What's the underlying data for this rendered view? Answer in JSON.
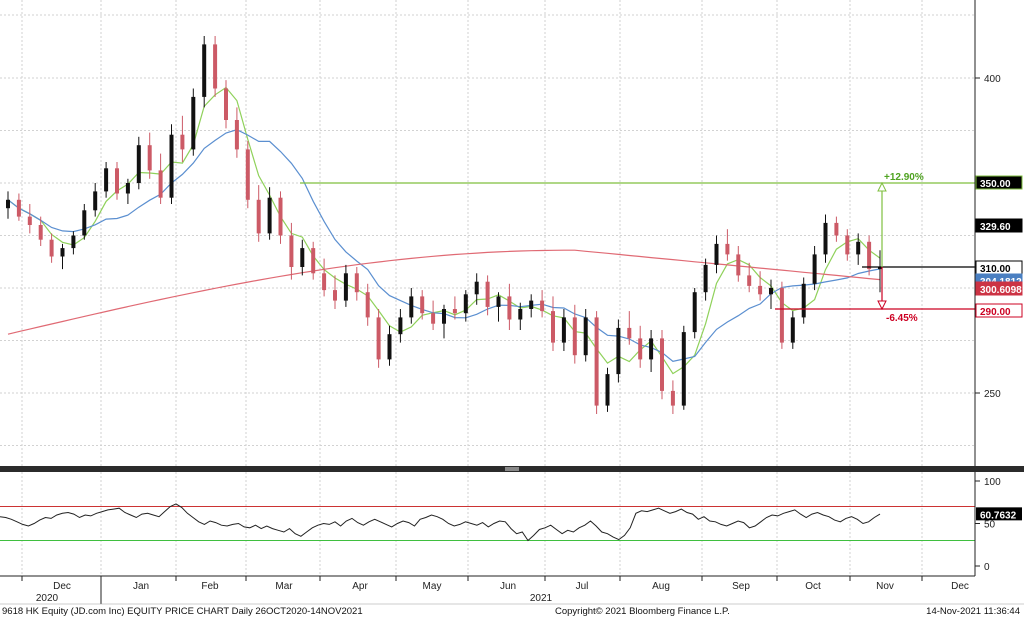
{
  "footer": {
    "left": "9618 HK Equity (JD.com Inc) EQUITY PRICE CHART  Daily 26OCT2020-14NOV2021",
    "center": "Copyright© 2021 Bloomberg Finance L.P.",
    "right": "14-Nov-2021 11:36:44"
  },
  "chart_data": [
    {
      "type": "candlestick",
      "title": "",
      "x_tick_labels": [
        "Dec",
        "Jan",
        "Feb",
        "Mar",
        "Apr",
        "May",
        "Jun",
        "Jul",
        "Aug",
        "Sep",
        "Oct",
        "Nov",
        "Dec"
      ],
      "year_labels": [
        "2020",
        "2021"
      ],
      "y_tick_labels": [
        "400",
        "250"
      ],
      "ylim": [
        220,
        430
      ],
      "grid": true,
      "price_tags": [
        {
          "text": "350.00",
          "fill": "#ffffff",
          "bg": "#000000",
          "border": "#7fbf3f"
        },
        {
          "text": "329.60",
          "fill": "#ffffff",
          "bg": "#000000",
          "border": "#000000"
        },
        {
          "text": "310.00",
          "fill": "#000000",
          "bg": "#ffffff",
          "border": "#000000"
        },
        {
          "text": "304.1812",
          "fill": "#ffffff",
          "bg": "#4a7fc1",
          "border": "#4a7fc1"
        },
        {
          "text": "300.6098",
          "fill": "#ffffff",
          "bg": "#cc3344",
          "border": "#cc3344"
        },
        {
          "text": "290.00",
          "fill": "#cc0022",
          "bg": "#ffffff",
          "border": "#cc0022"
        }
      ],
      "annotations": [
        "+12.90%",
        "-6.45%"
      ],
      "horizontal_lines": [
        350,
        310,
        290
      ],
      "candles_approx": [
        {
          "o": 338,
          "h": 346,
          "l": 333,
          "c": 342
        },
        {
          "o": 342,
          "h": 345,
          "l": 332,
          "c": 334
        },
        {
          "o": 334,
          "h": 340,
          "l": 326,
          "c": 330
        },
        {
          "o": 330,
          "h": 334,
          "l": 320,
          "c": 323
        },
        {
          "o": 323,
          "h": 326,
          "l": 312,
          "c": 315
        },
        {
          "o": 315,
          "h": 321,
          "l": 309,
          "c": 319
        },
        {
          "o": 319,
          "h": 327,
          "l": 316,
          "c": 325
        },
        {
          "o": 325,
          "h": 340,
          "l": 323,
          "c": 337
        },
        {
          "o": 337,
          "h": 350,
          "l": 334,
          "c": 346
        },
        {
          "o": 346,
          "h": 360,
          "l": 343,
          "c": 357
        },
        {
          "o": 357,
          "h": 360,
          "l": 342,
          "c": 345
        },
        {
          "o": 345,
          "h": 352,
          "l": 340,
          "c": 350
        },
        {
          "o": 350,
          "h": 372,
          "l": 347,
          "c": 368
        },
        {
          "o": 368,
          "h": 374,
          "l": 352,
          "c": 356
        },
        {
          "o": 356,
          "h": 364,
          "l": 340,
          "c": 343
        },
        {
          "o": 343,
          "h": 378,
          "l": 340,
          "c": 373
        },
        {
          "o": 373,
          "h": 382,
          "l": 360,
          "c": 366
        },
        {
          "o": 366,
          "h": 395,
          "l": 363,
          "c": 391
        },
        {
          "o": 391,
          "h": 420,
          "l": 386,
          "c": 416
        },
        {
          "o": 416,
          "h": 420,
          "l": 391,
          "c": 395
        },
        {
          "o": 395,
          "h": 399,
          "l": 376,
          "c": 380
        },
        {
          "o": 380,
          "h": 386,
          "l": 362,
          "c": 366
        },
        {
          "o": 366,
          "h": 370,
          "l": 338,
          "c": 342
        },
        {
          "o": 342,
          "h": 349,
          "l": 322,
          "c": 326
        },
        {
          "o": 326,
          "h": 348,
          "l": 323,
          "c": 343
        },
        {
          "o": 343,
          "h": 346,
          "l": 321,
          "c": 325
        },
        {
          "o": 325,
          "h": 331,
          "l": 304,
          "c": 310
        },
        {
          "o": 310,
          "h": 323,
          "l": 306,
          "c": 319
        },
        {
          "o": 319,
          "h": 322,
          "l": 304,
          "c": 307
        },
        {
          "o": 307,
          "h": 314,
          "l": 296,
          "c": 299
        },
        {
          "o": 299,
          "h": 306,
          "l": 290,
          "c": 294
        },
        {
          "o": 294,
          "h": 311,
          "l": 291,
          "c": 307
        },
        {
          "o": 307,
          "h": 310,
          "l": 294,
          "c": 298
        },
        {
          "o": 298,
          "h": 302,
          "l": 282,
          "c": 286
        },
        {
          "o": 286,
          "h": 290,
          "l": 262,
          "c": 266
        },
        {
          "o": 266,
          "h": 282,
          "l": 263,
          "c": 278
        },
        {
          "o": 278,
          "h": 290,
          "l": 274,
          "c": 286
        },
        {
          "o": 286,
          "h": 300,
          "l": 283,
          "c": 296
        },
        {
          "o": 296,
          "h": 299,
          "l": 285,
          "c": 288
        },
        {
          "o": 288,
          "h": 294,
          "l": 280,
          "c": 283
        },
        {
          "o": 283,
          "h": 292,
          "l": 276,
          "c": 290
        },
        {
          "o": 290,
          "h": 296,
          "l": 285,
          "c": 288
        },
        {
          "o": 288,
          "h": 299,
          "l": 284,
          "c": 297
        },
        {
          "o": 297,
          "h": 307,
          "l": 292,
          "c": 303
        },
        {
          "o": 303,
          "h": 306,
          "l": 287,
          "c": 291
        },
        {
          "o": 291,
          "h": 298,
          "l": 284,
          "c": 296
        },
        {
          "o": 296,
          "h": 302,
          "l": 280,
          "c": 285
        },
        {
          "o": 285,
          "h": 293,
          "l": 280,
          "c": 290
        },
        {
          "o": 290,
          "h": 297,
          "l": 286,
          "c": 294
        },
        {
          "o": 294,
          "h": 299,
          "l": 286,
          "c": 289
        },
        {
          "o": 289,
          "h": 296,
          "l": 270,
          "c": 274
        },
        {
          "o": 274,
          "h": 290,
          "l": 270,
          "c": 286
        },
        {
          "o": 286,
          "h": 292,
          "l": 264,
          "c": 268
        },
        {
          "o": 268,
          "h": 290,
          "l": 265,
          "c": 286
        },
        {
          "o": 286,
          "h": 289,
          "l": 240,
          "c": 244
        },
        {
          "o": 244,
          "h": 262,
          "l": 241,
          "c": 259
        },
        {
          "o": 259,
          "h": 285,
          "l": 255,
          "c": 281
        },
        {
          "o": 281,
          "h": 289,
          "l": 273,
          "c": 276
        },
        {
          "o": 276,
          "h": 282,
          "l": 262,
          "c": 266
        },
        {
          "o": 266,
          "h": 280,
          "l": 260,
          "c": 276
        },
        {
          "o": 276,
          "h": 280,
          "l": 247,
          "c": 251
        },
        {
          "o": 251,
          "h": 256,
          "l": 240,
          "c": 244
        },
        {
          "o": 244,
          "h": 282,
          "l": 242,
          "c": 279
        },
        {
          "o": 279,
          "h": 300,
          "l": 276,
          "c": 298
        },
        {
          "o": 298,
          "h": 314,
          "l": 294,
          "c": 311
        },
        {
          "o": 311,
          "h": 325,
          "l": 307,
          "c": 321
        },
        {
          "o": 321,
          "h": 328,
          "l": 313,
          "c": 316
        },
        {
          "o": 316,
          "h": 320,
          "l": 303,
          "c": 306
        },
        {
          "o": 306,
          "h": 312,
          "l": 298,
          "c": 301
        },
        {
          "o": 301,
          "h": 308,
          "l": 294,
          "c": 297
        },
        {
          "o": 297,
          "h": 304,
          "l": 290,
          "c": 300
        },
        {
          "o": 300,
          "h": 303,
          "l": 271,
          "c": 274
        },
        {
          "o": 274,
          "h": 289,
          "l": 271,
          "c": 286
        },
        {
          "o": 286,
          "h": 305,
          "l": 283,
          "c": 302
        },
        {
          "o": 302,
          "h": 320,
          "l": 299,
          "c": 316
        },
        {
          "o": 316,
          "h": 335,
          "l": 312,
          "c": 331
        },
        {
          "o": 331,
          "h": 334,
          "l": 322,
          "c": 325
        },
        {
          "o": 325,
          "h": 328,
          "l": 313,
          "c": 316
        },
        {
          "o": 316,
          "h": 326,
          "l": 311,
          "c": 322
        },
        {
          "o": 322,
          "h": 325,
          "l": 306,
          "c": 309
        },
        {
          "o": 309,
          "h": 318,
          "l": 298,
          "c": 310
        }
      ],
      "moving_averages": [
        "short",
        "medium",
        "long"
      ],
      "bands": []
    },
    {
      "type": "line",
      "title": "",
      "y_tick_labels": [
        "100",
        "50",
        "0"
      ],
      "ylim": [
        0,
        100
      ],
      "reference_lines": [
        70,
        30
      ],
      "last_value_label": "60.7632",
      "series": [
        {
          "name": "",
          "values": [
            58,
            57,
            55,
            52,
            49,
            47,
            50,
            54,
            57,
            56,
            60,
            62,
            63,
            61,
            57,
            60,
            59,
            62,
            64,
            66,
            67,
            68,
            63,
            60,
            57,
            61,
            62,
            60,
            58,
            64,
            70,
            73,
            69,
            62,
            57,
            52,
            49,
            53,
            51,
            48,
            47,
            49,
            50,
            46,
            45,
            48,
            44,
            47,
            44,
            42,
            40,
            44,
            38,
            35,
            40,
            45,
            48,
            50,
            49,
            52,
            47,
            53,
            56,
            51,
            48,
            52,
            55,
            52,
            49,
            46,
            50,
            53,
            51,
            47,
            55,
            57,
            60,
            58,
            55,
            50,
            47,
            49,
            52,
            50,
            48,
            51,
            46,
            50,
            53,
            52,
            44,
            38,
            40,
            30,
            36,
            43,
            45,
            48,
            43,
            38,
            42,
            40,
            45,
            48,
            53,
            47,
            40,
            38,
            34,
            31,
            36,
            45,
            62,
            65,
            64,
            66,
            68,
            65,
            62,
            64,
            67,
            63,
            61,
            55,
            58,
            53,
            52,
            49,
            47,
            50,
            53,
            51,
            45,
            47,
            52,
            57,
            60,
            59,
            62,
            64,
            66,
            61,
            57,
            61,
            63,
            60,
            58,
            54,
            52,
            56,
            58,
            55,
            50,
            52,
            57,
            61
          ]
        }
      ]
    }
  ]
}
